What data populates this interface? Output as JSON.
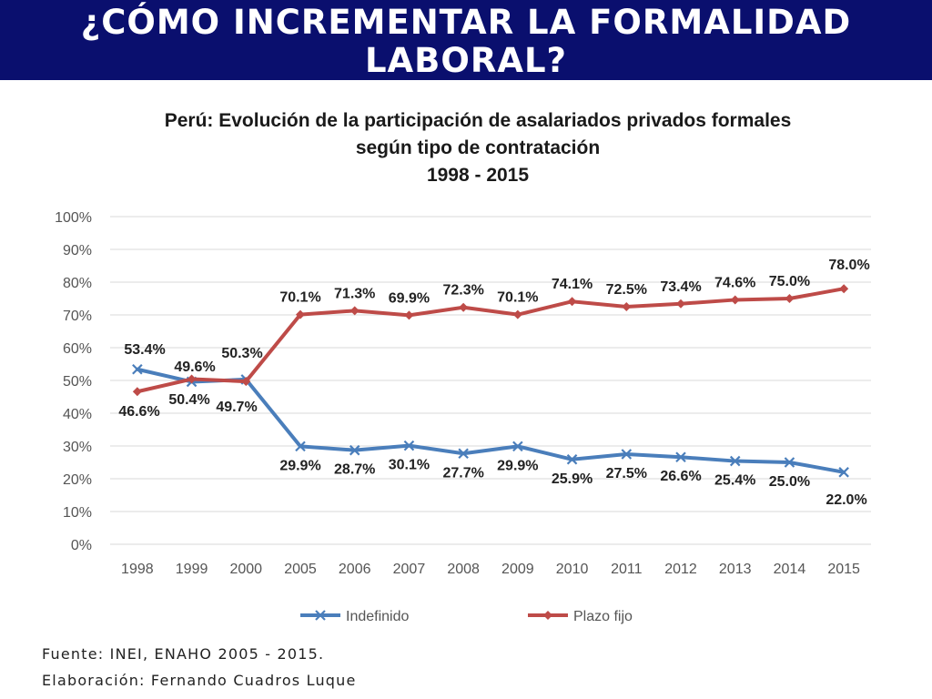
{
  "banner": {
    "title": "¿CÓMO INCREMENTAR LA FORMALIDAD LABORAL?"
  },
  "footer": {
    "source": "Fuente: INEI, ENAHO 2005 - 2015.",
    "author": "Elaboración: Fernando Cuadros Luque"
  },
  "chart_data": {
    "type": "line",
    "title": [
      "Perú: Evolución de la participación de asalariados privados formales",
      "según tipo de contratación",
      "1998 - 2015"
    ],
    "xlabel": "",
    "ylabel": "",
    "ylim": [
      0,
      100
    ],
    "y_ticks": [
      "0%",
      "10%",
      "20%",
      "30%",
      "40%",
      "50%",
      "60%",
      "70%",
      "80%",
      "90%",
      "100%"
    ],
    "grid": true,
    "legend": "bottom",
    "categories": [
      "1998",
      "1999",
      "2000",
      "2005",
      "2006",
      "2007",
      "2008",
      "2009",
      "2010",
      "2011",
      "2012",
      "2013",
      "2014",
      "2015"
    ],
    "series": [
      {
        "name": "Indefinido",
        "color": "#4a7ebb",
        "marker": "x",
        "values": [
          53.4,
          49.6,
          50.3,
          29.9,
          28.7,
          30.1,
          27.7,
          29.9,
          25.9,
          27.5,
          26.6,
          25.4,
          25.0,
          22.0
        ],
        "labels": [
          "53.4%",
          "49.6%",
          "50.3%",
          "29.9%",
          "28.7%",
          "30.1%",
          "27.7%",
          "29.9%",
          "25.9%",
          "27.5%",
          "26.6%",
          "25.4%",
          "25.0%",
          "22.0%"
        ]
      },
      {
        "name": "Plazo fijo",
        "color": "#be4b48",
        "marker": "diamond",
        "values": [
          46.6,
          50.4,
          49.7,
          70.1,
          71.3,
          69.9,
          72.3,
          70.1,
          74.1,
          72.5,
          73.4,
          74.6,
          75.0,
          78.0
        ],
        "labels": [
          "46.6%",
          "50.4%",
          "49.7%",
          "70.1%",
          "71.3%",
          "69.9%",
          "72.3%",
          "70.1%",
          "74.1%",
          "72.5%",
          "73.4%",
          "74.6%",
          "75.0%",
          "78.0%"
        ]
      }
    ]
  }
}
